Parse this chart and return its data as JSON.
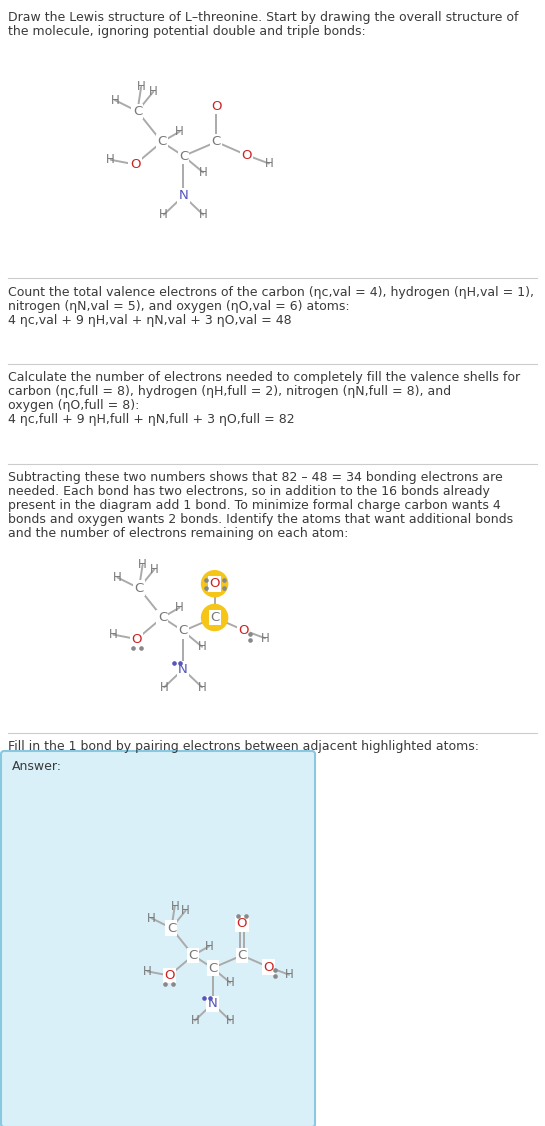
{
  "bg_color": "#ffffff",
  "text_color": "#3a3a3a",
  "C_color": "#777777",
  "H_color": "#777777",
  "N_color": "#5555bb",
  "O_color": "#cc2222",
  "bond_color": "#aaaaaa",
  "highlight_yellow": "#f5c518",
  "answer_bg": "#daf0f8",
  "answer_border": "#88c8e0",
  "sep_color": "#cccccc",
  "s1_lines": [
    "Draw the Lewis structure of L–threonine. Start by drawing the overall structure of",
    "the molecule, ignoring potential double and triple bonds:"
  ],
  "s2_lines": [
    "Count the total valence electrons of the carbon (n_{C,val} = 4), hydrogen (n_{H,val} = 1),",
    "nitrogen (n_{N,val} = 5), and oxygen (n_{O,val} = 6) atoms:",
    "4 n_{C,val} + 9 n_{H,val} + n_{N,val} + 3 n_{O,val} = 48"
  ],
  "s3_lines": [
    "Calculate the number of electrons needed to completely fill the valence shells for",
    "carbon (n_{C,full} = 8), hydrogen (n_{H,full} = 2), nitrogen (n_{N,full} = 8), and",
    "oxygen (n_{O,full} = 8):",
    "4 n_{C,full} + 9 n_{H,full} + n_{N,full} + 3 n_{O,full} = 82"
  ],
  "s4_lines": [
    "Subtracting these two numbers shows that 82 – 48 = 34 bonding electrons are",
    "needed. Each bond has two electrons, so in addition to the 16 bonds already",
    "present in the diagram add 1 bond. To minimize formal charge carbon wants 4",
    "bonds and oxygen wants 2 bonds. Identify the atoms that want additional bonds",
    "and the number of electrons remaining on each atom:"
  ],
  "s5_lines": [
    "Fill in the 1 bond by pairing electrons between adjacent highlighted atoms:"
  ],
  "answer_label": "Answer:"
}
